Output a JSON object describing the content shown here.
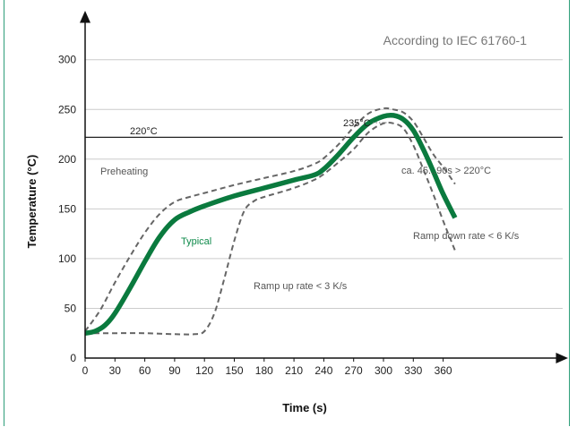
{
  "chart_data": {
    "type": "line",
    "title": "",
    "annotation_standard": "According to IEC 61760-1",
    "xlabel": "Time (s)",
    "ylabel": "Temperature (°C)",
    "xlim": [
      0,
      375
    ],
    "ylim": [
      0,
      330
    ],
    "x_ticks": [
      0,
      30,
      60,
      90,
      120,
      150,
      180,
      210,
      240,
      270,
      300,
      330,
      360
    ],
    "y_ticks": [
      0,
      50,
      100,
      150,
      200,
      250,
      300
    ],
    "grid": "horizontal",
    "colors": {
      "typical": "#0a7a3e",
      "limits": "#666666",
      "grid": "#cccccc",
      "axis": "#111111"
    },
    "reference_lines": [
      {
        "y": 222,
        "label": "220°C"
      }
    ],
    "peak_marker": {
      "label": "235°C",
      "x": 290,
      "y": 235
    },
    "series": [
      {
        "name": "Typical",
        "style": "solid",
        "x": [
          0,
          10,
          20,
          30,
          45,
          60,
          75,
          90,
          105,
          120,
          150,
          180,
          210,
          230,
          240,
          255,
          270,
          285,
          300,
          310,
          320,
          330,
          340,
          350,
          360,
          372
        ],
        "y": [
          25,
          27,
          33,
          45,
          70,
          97,
          122,
          139,
          147,
          153,
          163,
          171,
          179,
          184,
          190,
          205,
          222,
          236,
          243,
          244,
          240,
          229,
          210,
          188,
          165,
          141
        ]
      },
      {
        "name": "",
        "style": "dashed",
        "x": [
          0,
          15,
          30,
          45,
          60,
          75,
          90,
          105,
          120,
          150,
          180,
          210,
          230,
          240,
          255,
          270,
          285,
          300,
          310,
          320,
          330,
          340,
          350,
          360,
          372
        ],
        "y": [
          27,
          48,
          76,
          102,
          126,
          145,
          157,
          162,
          166,
          174,
          181,
          188,
          195,
          201,
          215,
          232,
          246,
          251,
          250,
          247,
          238,
          222,
          205,
          192,
          175
        ]
      },
      {
        "name": "",
        "style": "dashed",
        "x": [
          0,
          30,
          60,
          90,
          110,
          120,
          130,
          140,
          150,
          160,
          170,
          180,
          210,
          230,
          240,
          255,
          270,
          285,
          300,
          310,
          320,
          330,
          340,
          350,
          360,
          372
        ],
        "y": [
          25,
          25,
          25,
          24,
          24,
          27,
          45,
          80,
          118,
          148,
          158,
          162,
          171,
          179,
          185,
          197,
          210,
          227,
          236,
          236,
          231,
          214,
          190,
          165,
          138,
          108
        ]
      }
    ],
    "annotations": [
      {
        "id": "preheating",
        "text": "Preheating"
      },
      {
        "id": "typical",
        "text": "Typical"
      },
      {
        "id": "ramp-up",
        "text": "Ramp up rate < 3 K/s"
      },
      {
        "id": "ramp-down",
        "text": "Ramp down rate < 6 K/s"
      },
      {
        "id": "duration",
        "text": "ca. 45...90s > 220°C"
      }
    ]
  }
}
